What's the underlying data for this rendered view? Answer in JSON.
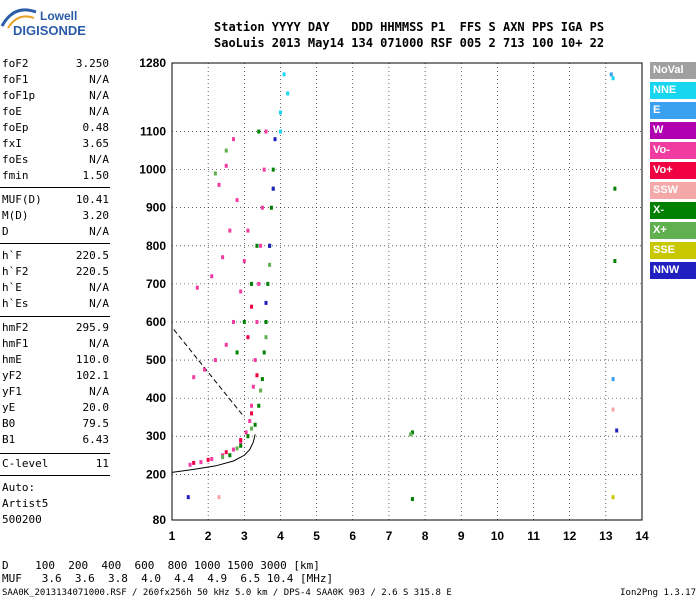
{
  "logo": {
    "top": "Lowell",
    "bottom": "DIGISONDE"
  },
  "header": {
    "line1": "Station YYYY DAY   DDD HHMMSS P1  FFS S AXN PPS IGA PS",
    "line2": "SaoLuis 2013 May14 134 071000 RSF 005 2 713 100 10+ 22"
  },
  "params": [
    {
      "name": "foF2",
      "value": "3.250"
    },
    {
      "name": "foF1",
      "value": "N/A"
    },
    {
      "name": "foF1p",
      "value": "N/A"
    },
    {
      "name": "foE",
      "value": "N/A"
    },
    {
      "name": "foEp",
      "value": "0.48"
    },
    {
      "name": "fxI",
      "value": "3.65"
    },
    {
      "name": "foEs",
      "value": "N/A"
    },
    {
      "name": "fmin",
      "value": "1.50"
    },
    {
      "name": "MUF(D)",
      "value": "10.41"
    },
    {
      "name": "M(D)",
      "value": "3.20"
    },
    {
      "name": "D",
      "value": "N/A"
    },
    {
      "name": "h`F",
      "value": "220.5"
    },
    {
      "name": "h`F2",
      "value": "220.5"
    },
    {
      "name": "h`E",
      "value": "N/A"
    },
    {
      "name": "h`Es",
      "value": "N/A"
    },
    {
      "name": "hmF2",
      "value": "295.9"
    },
    {
      "name": "hmF1",
      "value": "N/A"
    },
    {
      "name": "hmE",
      "value": "110.0"
    },
    {
      "name": "yF2",
      "value": "102.1"
    },
    {
      "name": "yF1",
      "value": "N/A"
    },
    {
      "name": "yE",
      "value": "20.0"
    },
    {
      "name": "B0",
      "value": "79.5"
    },
    {
      "name": "B1",
      "value": "6.43"
    },
    {
      "name": "C-level",
      "value": "11"
    }
  ],
  "auto": {
    "l1": "Auto:",
    "l2": "Artist5",
    "l3": "500200"
  },
  "legend": [
    {
      "label": "NoVal",
      "color": "#a0a0a0"
    },
    {
      "label": "NNE",
      "color": "#19d6f0"
    },
    {
      "label": "E",
      "color": "#3aa0f0"
    },
    {
      "label": "W",
      "color": "#b000b0"
    },
    {
      "label": "Vo-",
      "color": "#f03ca0"
    },
    {
      "label": "Vo+",
      "color": "#f00040"
    },
    {
      "label": "SSW",
      "color": "#f4a8a8"
    },
    {
      "label": "X-",
      "color": "#008000"
    },
    {
      "label": "X+",
      "color": "#60b050"
    },
    {
      "label": "SSE",
      "color": "#c8c800"
    },
    {
      "label": "NNW",
      "color": "#2020c0"
    }
  ],
  "bottom": {
    "d_row": "D    100  200  400  600  800 1000 1500 3000 [km]",
    "muf_row": "MUF   3.6  3.6  3.8  4.0  4.4  4.9  6.5 10.4 [MHz]"
  },
  "footer": "SAA0K_2013134071000.RSF / 260fx256h 50 kHz 5.0 km / DPS-4 SAA0K 903 / 2.6 S 315.8 E",
  "version": "Ion2Png 1.3.17",
  "chart_data": {
    "type": "scatter",
    "x_ticks": [
      "1",
      "2",
      "3",
      "4",
      "5",
      "6",
      "7",
      "8",
      "9",
      "10",
      "11",
      "12",
      "13",
      "14"
    ],
    "y_ticks": [
      "80",
      "200",
      "300",
      "400",
      "500",
      "600",
      "700",
      "800",
      "900",
      "1000",
      "1100",
      "1280"
    ],
    "xlim": [
      1,
      14
    ],
    "ylim": [
      80,
      1280
    ],
    "grid": true,
    "series": [
      {
        "name": "Vo-",
        "color": "#f03ca0",
        "points": [
          [
            1.5,
            225
          ],
          [
            1.8,
            232
          ],
          [
            2.1,
            240
          ],
          [
            2.4,
            250
          ],
          [
            2.7,
            265
          ],
          [
            2.9,
            285
          ],
          [
            3.05,
            310
          ],
          [
            3.15,
            340
          ],
          [
            3.2,
            380
          ],
          [
            3.25,
            430
          ],
          [
            3.3,
            500
          ],
          [
            3.35,
            600
          ],
          [
            3.4,
            700
          ],
          [
            3.45,
            800
          ],
          [
            3.5,
            900
          ],
          [
            3.55,
            1000
          ],
          [
            3.6,
            1100
          ],
          [
            1.6,
            455
          ],
          [
            1.9,
            475
          ],
          [
            2.2,
            500
          ],
          [
            2.5,
            540
          ],
          [
            2.7,
            600
          ],
          [
            2.9,
            680
          ],
          [
            3.0,
            760
          ],
          [
            3.1,
            840
          ],
          [
            1.7,
            690
          ],
          [
            2.1,
            720
          ],
          [
            2.4,
            770
          ],
          [
            2.6,
            840
          ],
          [
            2.8,
            920
          ],
          [
            2.3,
            960
          ],
          [
            2.5,
            1010
          ],
          [
            2.7,
            1080
          ]
        ]
      },
      {
        "name": "Vo+",
        "color": "#f00040",
        "points": [
          [
            1.6,
            230
          ],
          [
            2.0,
            238
          ],
          [
            2.5,
            258
          ],
          [
            2.9,
            290
          ],
          [
            3.2,
            360
          ],
          [
            3.35,
            460
          ],
          [
            3.1,
            560
          ],
          [
            3.2,
            640
          ]
        ]
      },
      {
        "name": "X-",
        "color": "#008000",
        "points": [
          [
            2.6,
            250
          ],
          [
            2.9,
            275
          ],
          [
            3.1,
            300
          ],
          [
            3.3,
            330
          ],
          [
            3.4,
            380
          ],
          [
            3.5,
            450
          ],
          [
            3.55,
            520
          ],
          [
            3.6,
            600
          ],
          [
            3.65,
            700
          ],
          [
            3.7,
            800
          ],
          [
            3.75,
            900
          ],
          [
            3.8,
            1000
          ],
          [
            3.4,
            1100
          ],
          [
            2.8,
            520
          ],
          [
            3.0,
            600
          ],
          [
            3.2,
            700
          ],
          [
            3.35,
            800
          ],
          [
            7.65,
            310
          ],
          [
            7.65,
            135
          ],
          [
            13.25,
            950
          ],
          [
            13.25,
            760
          ]
        ]
      },
      {
        "name": "X+",
        "color": "#60b050",
        "points": [
          [
            2.4,
            245
          ],
          [
            2.8,
            268
          ],
          [
            3.2,
            320
          ],
          [
            3.45,
            420
          ],
          [
            3.6,
            560
          ],
          [
            3.7,
            750
          ],
          [
            3.8,
            950
          ],
          [
            2.2,
            990
          ],
          [
            2.5,
            1050
          ],
          [
            7.6,
            305
          ]
        ]
      },
      {
        "name": "NNW",
        "color": "#2020c0",
        "points": [
          [
            3.6,
            650
          ],
          [
            3.7,
            800
          ],
          [
            3.8,
            950
          ],
          [
            3.85,
            1080
          ],
          [
            1.45,
            140
          ],
          [
            13.3,
            315
          ]
        ]
      },
      {
        "name": "NNE",
        "color": "#19d6f0",
        "points": [
          [
            4.0,
            1100
          ],
          [
            4.1,
            1250
          ],
          [
            4.2,
            1200
          ],
          [
            4.0,
            1150
          ],
          [
            13.2,
            1240
          ]
        ]
      },
      {
        "name": "E",
        "color": "#3aa0f0",
        "points": [
          [
            13.15,
            1250
          ],
          [
            13.2,
            450
          ]
        ]
      },
      {
        "name": "SSE",
        "color": "#c8c800",
        "points": [
          [
            13.2,
            140
          ]
        ]
      },
      {
        "name": "SSW",
        "color": "#f4a8a8",
        "points": [
          [
            2.3,
            140
          ],
          [
            13.2,
            370
          ]
        ]
      }
    ]
  }
}
